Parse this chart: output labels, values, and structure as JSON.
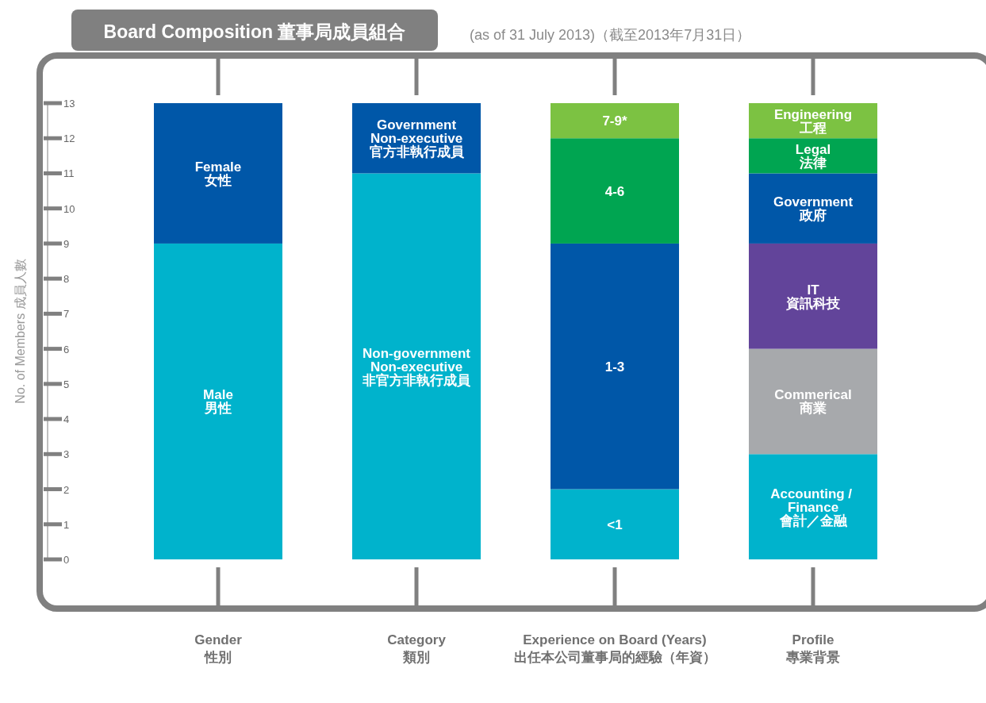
{
  "chart_data": {
    "type": "bar",
    "stacked": true,
    "title": "Board Composition 董事局成員組合",
    "subtitle": "(as of 31 July 2013)（截至2013年7月31日）",
    "ylabel": "No. of Members 成員人數",
    "categories": [
      "Gender\n性別",
      "Category\n類別",
      "Experience on Board (Years)\n出任本公司董事局的經驗（年資）",
      "Profile\n專業背景"
    ],
    "ylim": [
      0,
      13
    ],
    "yticks": [
      0,
      1,
      2,
      3,
      4,
      5,
      6,
      7,
      8,
      9,
      10,
      11,
      12,
      13
    ],
    "series": [
      {
        "name": "Male\n男性",
        "color": "#00b3cc",
        "values": [
          9,
          null,
          null,
          null
        ]
      },
      {
        "name": "Female\n女性",
        "color": "#0057a8",
        "values": [
          4,
          null,
          null,
          null
        ]
      },
      {
        "name": "Non-government\nNon-executive\n非官方非執行成員",
        "color": "#00b3cc",
        "values": [
          null,
          11,
          null,
          null
        ]
      },
      {
        "name": "Government\nNon-executive\n官方非執行成員",
        "color": "#0057a8",
        "values": [
          null,
          2,
          null,
          null
        ]
      },
      {
        "name": "<1",
        "color": "#00b3cc",
        "values": [
          null,
          null,
          2,
          null
        ]
      },
      {
        "name": "1-3",
        "color": "#0057a8",
        "values": [
          null,
          null,
          7,
          null
        ]
      },
      {
        "name": "4-6",
        "color": "#00a551",
        "values": [
          null,
          null,
          3,
          null
        ]
      },
      {
        "name": "7-9*",
        "color": "#7cc242",
        "values": [
          null,
          null,
          1,
          null
        ]
      },
      {
        "name": "Accounting / \nFinance\n會計／金融",
        "color": "#00b3cc",
        "values": [
          null,
          null,
          null,
          3
        ]
      },
      {
        "name": "Commerical\n商業",
        "color": "#a7a9ac",
        "values": [
          null,
          null,
          null,
          3
        ]
      },
      {
        "name": "IT\n資訊科技",
        "color": "#62449a",
        "values": [
          null,
          null,
          null,
          3
        ]
      },
      {
        "name": "Government\n政府",
        "color": "#0057a8",
        "values": [
          null,
          null,
          null,
          2
        ]
      },
      {
        "name": "Legal\n法律",
        "color": "#00a551",
        "values": [
          null,
          null,
          null,
          1
        ]
      },
      {
        "name": "Engineering\n工程",
        "color": "#7cc242",
        "values": [
          null,
          null,
          null,
          1
        ]
      }
    ]
  }
}
